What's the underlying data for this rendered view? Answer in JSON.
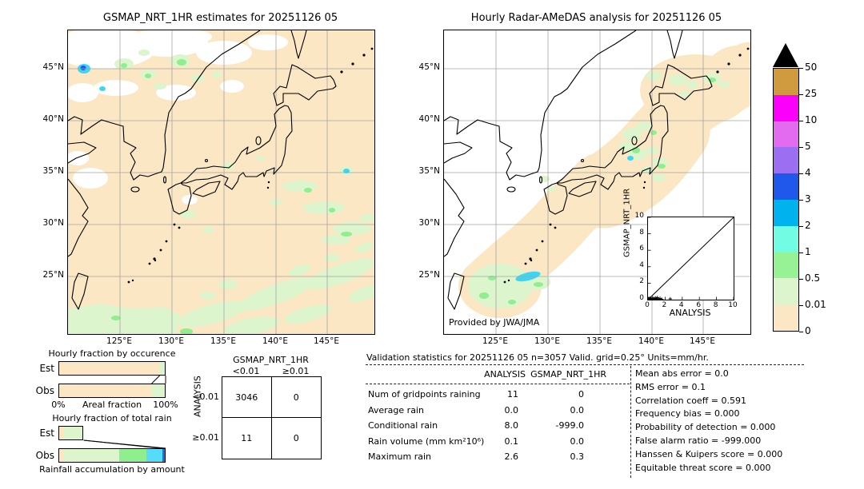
{
  "figure": {
    "left_map": {
      "title": "GSMAP_NRT_1HR estimates for 20251126 05"
    },
    "right_map": {
      "title": "Hourly Radar-AMeDAS analysis for 20251126 05",
      "credit": "Provided by JWA/JMA"
    },
    "lon_ticks": [
      "125°E",
      "130°E",
      "135°E",
      "140°E",
      "145°E"
    ],
    "lat_ticks": [
      "45°N",
      "40°N",
      "35°N",
      "30°N",
      "25°N"
    ]
  },
  "palette": {
    "peach": "#fbe7c3",
    "pale_green": "#dcf5cd",
    "green": "#8fee8e",
    "aqua": "#72fce4",
    "deepsky": "#00b3ef",
    "blue": "#1f58ea",
    "purple": "#9b6ef2",
    "orchid": "#e26bf0",
    "magenta": "#fb00fb",
    "goldenrod": "#cf9b3e",
    "over": "#000000"
  },
  "colorbar": {
    "labels": [
      "50",
      "25",
      "10",
      "5",
      "4",
      "3",
      "2",
      "1",
      "0.5",
      "0.01",
      "0"
    ],
    "band_colors": [
      "#cf9b3e",
      "#fb00fb",
      "#e26bf0",
      "#9b6ef2",
      "#1f58ea",
      "#00b3ef",
      "#72fce4",
      "#97f195",
      "#dcf5cd",
      "#fbe7c3"
    ]
  },
  "chart_data": [
    {
      "type": "bar",
      "title": "Hourly fraction by occurence",
      "xlabel": "Areal fraction",
      "x_ticks": [
        "0%",
        "100%"
      ],
      "categories": [
        "Est",
        "Obs"
      ],
      "classes": [
        "0-0.01",
        "0.01-0.5"
      ],
      "colors": [
        "#fbe7c3",
        "#dcf5cd"
      ],
      "series": [
        {
          "name": "Est",
          "values": [
            0.945,
            0.055
          ]
        },
        {
          "name": "Obs",
          "values": [
            0.87,
            0.13
          ]
        }
      ],
      "connectors": [
        [
          0.945,
          0.87
        ],
        [
          1.0,
          1.0
        ]
      ],
      "xlim": [
        0,
        1
      ]
    },
    {
      "type": "bar",
      "title": "Hourly fraction of total rain",
      "xlabel": "Rainfall accumulation by amount",
      "categories": [
        "Est",
        "Obs"
      ],
      "classes": [
        "0-0.01",
        "0.01-0.5",
        "0.5-1",
        "1-2",
        "2-3"
      ],
      "colors": [
        "#fbe7c3",
        "#dcf5cd",
        "#8fee8e",
        "#55dcf8",
        "#1e6ee8"
      ],
      "series": [
        {
          "name": "Est",
          "values": [
            0.045,
            0.19,
            0,
            0,
            0
          ]
        },
        {
          "name": "Obs",
          "values": [
            0.04,
            0.525,
            0.26,
            0.15,
            0.025
          ]
        }
      ],
      "connectors": [
        [
          0.235,
          0.95
        ],
        [
          0.235,
          1.0
        ]
      ],
      "xlim": [
        0,
        1
      ]
    },
    {
      "type": "scatter",
      "xlabel": "ANALYSIS",
      "ylabel": "GSMAP_NRT_1HR",
      "xlim": [
        0,
        10
      ],
      "ylim": [
        0,
        10
      ],
      "ticks": [
        0,
        2,
        4,
        6,
        8,
        10
      ],
      "diagonal": true,
      "points": [
        [
          0.05,
          0.05
        ],
        [
          0.1,
          0.1
        ],
        [
          0.15,
          0.05
        ],
        [
          0.2,
          0.15
        ],
        [
          0.25,
          0.05
        ],
        [
          0.3,
          0.1
        ],
        [
          0.4,
          0.05
        ],
        [
          0.5,
          0.2
        ],
        [
          0.6,
          0.05
        ],
        [
          0.7,
          0.15
        ],
        [
          0.8,
          0.05
        ],
        [
          0.9,
          0.2
        ],
        [
          1.0,
          0.1
        ],
        [
          1.1,
          0.25
        ],
        [
          1.2,
          0.05
        ],
        [
          1.4,
          0.15
        ],
        [
          1.6,
          0.05
        ],
        [
          2.6,
          0.1
        ]
      ]
    },
    {
      "type": "table",
      "title": "GSMAP_NRT_1HR",
      "row_axis": "ANALYSIS",
      "col_headers": [
        "<0.01",
        "≥0.01"
      ],
      "row_headers": [
        "<0.01",
        "≥0.01"
      ],
      "values": [
        [
          3046,
          0
        ],
        [
          11,
          0
        ]
      ]
    }
  ],
  "contingency": {
    "col_title": "GSMAP_NRT_1HR",
    "row_title": "ANALYSIS",
    "col_headers": [
      "<0.01",
      "≥0.01"
    ],
    "row_headers": [
      "<0.01",
      "≥0.01"
    ],
    "cells": [
      [
        "3046",
        "0"
      ],
      [
        "11",
        "0"
      ]
    ]
  },
  "validation": {
    "header": "Validation statistics for 20251126 05  n=3057 Valid. grid=0.25° Units=mm/hr.",
    "col1": "ANALYSIS",
    "col2": "GSMAP_NRT_1HR",
    "rows": [
      {
        "label": "Num of gridpoints raining",
        "analysis": "11",
        "gsmap": "0"
      },
      {
        "label": "Average rain",
        "analysis": "0.0",
        "gsmap": "0.0"
      },
      {
        "label": "Conditional rain",
        "analysis": "8.0",
        "gsmap": "-999.0"
      },
      {
        "label": "Rain volume (mm km²10⁶)",
        "analysis": "0.1",
        "gsmap": "0.0"
      },
      {
        "label": "Maximum rain",
        "analysis": "2.6",
        "gsmap": "0.3"
      }
    ],
    "scores": [
      {
        "label": "Mean abs error",
        "value": "0.0"
      },
      {
        "label": "RMS error",
        "value": "0.1"
      },
      {
        "label": "Correlation coeff",
        "value": "0.591"
      },
      {
        "label": "Frequency bias",
        "value": "0.000"
      },
      {
        "label": "Probability of detection",
        "value": "0.000"
      },
      {
        "label": "False alarm ratio",
        "value": "-999.000"
      },
      {
        "label": "Hanssen & Kuipers score",
        "value": "0.000"
      },
      {
        "label": "Equitable threat score",
        "value": "0.000"
      }
    ]
  }
}
